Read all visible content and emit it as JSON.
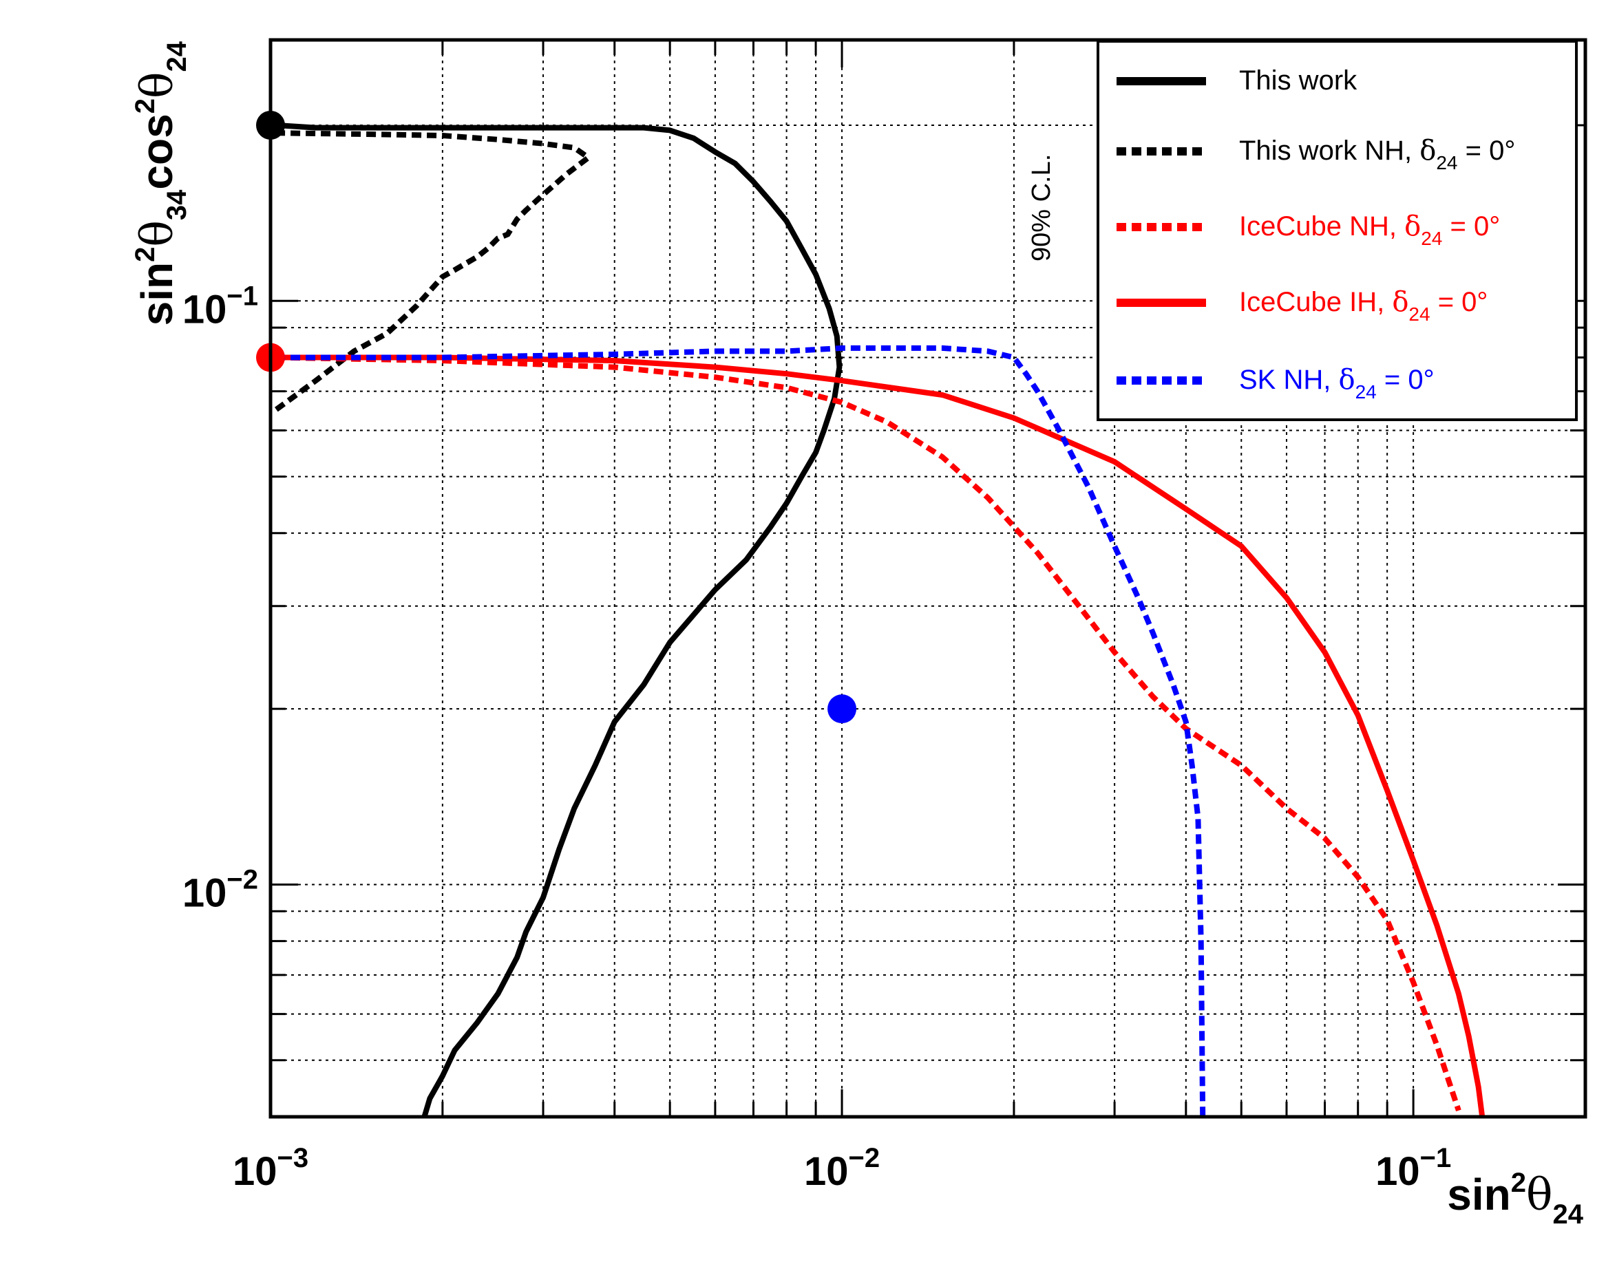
{
  "chart_data": {
    "type": "line",
    "xscale": "log",
    "yscale": "log",
    "xlim": [
      0.001,
      0.2
    ],
    "ylim": [
      0.004,
      0.28
    ],
    "grid": true,
    "xlabel": {
      "base": "sin",
      "sup": "2",
      "theta": "θ",
      "sub": "24"
    },
    "ylabel": {
      "base1": "sin",
      "sup1": "2",
      "theta1": "θ",
      "sub1": "34",
      "base2": "cos",
      "sup2": "2",
      "theta2": "θ",
      "sub2": "24"
    },
    "xticks": [
      {
        "value": 0.001,
        "base": "10",
        "exp": "−3"
      },
      {
        "value": 0.01,
        "base": "10",
        "exp": "−2"
      },
      {
        "value": 0.1,
        "base": "10",
        "exp": "−1"
      }
    ],
    "yticks": [
      {
        "value": 0.01,
        "base": "10",
        "exp": "−2"
      },
      {
        "value": 0.1,
        "base": "10",
        "exp": "−1"
      }
    ],
    "annotation": "90% C.L.",
    "legend_position": "top-right",
    "series": [
      {
        "name": "This work",
        "label": {
          "text": "This work",
          "delta": "",
          "sub": "",
          "tail": ""
        },
        "color": "#000000",
        "style": "solid",
        "x": [
          0.00102,
          0.0012,
          0.0015,
          0.002,
          0.003,
          0.004,
          0.0045,
          0.005,
          0.0055,
          0.006,
          0.0065,
          0.007,
          0.0075,
          0.008,
          0.0085,
          0.009,
          0.0095,
          0.0098,
          0.0099,
          0.0097,
          0.0093,
          0.009,
          0.0085,
          0.008,
          0.0075,
          0.0068,
          0.006,
          0.005,
          0.0045,
          0.004,
          0.0037,
          0.0034,
          0.0032,
          0.003,
          0.0028,
          0.0027,
          0.0025,
          0.0023,
          0.0021,
          0.002,
          0.0019,
          0.0018
        ],
        "y": [
          0.2,
          0.198,
          0.198,
          0.198,
          0.198,
          0.198,
          0.198,
          0.196,
          0.19,
          0.18,
          0.172,
          0.16,
          0.148,
          0.137,
          0.123,
          0.111,
          0.097,
          0.087,
          0.077,
          0.068,
          0.06,
          0.055,
          0.05,
          0.045,
          0.041,
          0.036,
          0.032,
          0.026,
          0.022,
          0.019,
          0.016,
          0.0135,
          0.0115,
          0.0095,
          0.0083,
          0.0075,
          0.0065,
          0.0058,
          0.0052,
          0.0047,
          0.0043,
          0.0036
        ]
      },
      {
        "name": "This work NH, δ24 = 0°",
        "label": {
          "text": "This work NH, ",
          "delta": "δ",
          "sub": "24",
          "tail": " = 0°"
        },
        "color": "#000000",
        "style": "dotted",
        "x": [
          0.00102,
          0.0015,
          0.002,
          0.0025,
          0.003,
          0.0034,
          0.0036,
          0.0033,
          0.003,
          0.0028,
          0.0027,
          0.0026,
          0.0025,
          0.0024,
          0.0023,
          0.0021,
          0.002,
          0.0019,
          0.0018,
          0.0016,
          0.0014,
          0.0012,
          0.00102
        ],
        "y": [
          0.194,
          0.193,
          0.192,
          0.189,
          0.186,
          0.183,
          0.176,
          0.165,
          0.152,
          0.143,
          0.138,
          0.13,
          0.128,
          0.123,
          0.119,
          0.113,
          0.11,
          0.104,
          0.098,
          0.088,
          0.082,
          0.073,
          0.065
        ]
      },
      {
        "name": "IceCube NH, δ24 = 0°",
        "label": {
          "text": "IceCube NH, ",
          "delta": "δ",
          "sub": "24",
          "tail": " = 0°"
        },
        "color": "#ff0000",
        "style": "dotted",
        "x": [
          0.00102,
          0.002,
          0.004,
          0.006,
          0.008,
          0.01,
          0.012,
          0.015,
          0.018,
          0.022,
          0.026,
          0.03,
          0.035,
          0.04,
          0.05,
          0.06,
          0.07,
          0.08,
          0.09,
          0.1,
          0.11,
          0.12
        ],
        "y": [
          0.08,
          0.079,
          0.077,
          0.074,
          0.071,
          0.067,
          0.062,
          0.054,
          0.046,
          0.037,
          0.03,
          0.025,
          0.021,
          0.0185,
          0.016,
          0.0135,
          0.012,
          0.0103,
          0.0087,
          0.0068,
          0.0053,
          0.0041
        ]
      },
      {
        "name": "IceCube IH, δ24 = 0°",
        "label": {
          "text": "IceCube IH, ",
          "delta": "δ",
          "sub": "24",
          "tail": " = 0°"
        },
        "color": "#ff0000",
        "style": "solid",
        "x": [
          0.00102,
          0.002,
          0.004,
          0.006,
          0.008,
          0.01,
          0.015,
          0.02,
          0.03,
          0.04,
          0.05,
          0.06,
          0.07,
          0.08,
          0.09,
          0.1,
          0.11,
          0.12,
          0.125,
          0.13,
          0.132
        ],
        "y": [
          0.08,
          0.08,
          0.079,
          0.077,
          0.075,
          0.073,
          0.069,
          0.063,
          0.053,
          0.044,
          0.038,
          0.031,
          0.025,
          0.0195,
          0.0145,
          0.011,
          0.0085,
          0.0065,
          0.0055,
          0.0045,
          0.004
        ]
      },
      {
        "name": "SK NH, δ24 = 0°",
        "label": {
          "text": "SK NH, ",
          "delta": "δ",
          "sub": "24",
          "tail": " = 0°"
        },
        "color": "#0000ff",
        "style": "dotted",
        "x": [
          0.00102,
          0.002,
          0.004,
          0.006,
          0.008,
          0.01,
          0.012,
          0.015,
          0.018,
          0.02,
          0.021,
          0.022,
          0.024,
          0.027,
          0.03,
          0.033,
          0.035,
          0.038,
          0.04,
          0.041,
          0.042,
          0.0425,
          0.0428
        ],
        "y": [
          0.08,
          0.08,
          0.081,
          0.082,
          0.082,
          0.083,
          0.083,
          0.083,
          0.082,
          0.08,
          0.075,
          0.07,
          0.06,
          0.048,
          0.038,
          0.031,
          0.027,
          0.022,
          0.019,
          0.016,
          0.013,
          0.008,
          0.004
        ]
      }
    ],
    "markers": [
      {
        "name": "black-marker",
        "x": 0.001,
        "y": 0.2,
        "color": "#000000"
      },
      {
        "name": "red-marker",
        "x": 0.001,
        "y": 0.08,
        "color": "#ff0000"
      },
      {
        "name": "blue-marker",
        "x": 0.01,
        "y": 0.02,
        "color": "#0000ff"
      }
    ]
  }
}
